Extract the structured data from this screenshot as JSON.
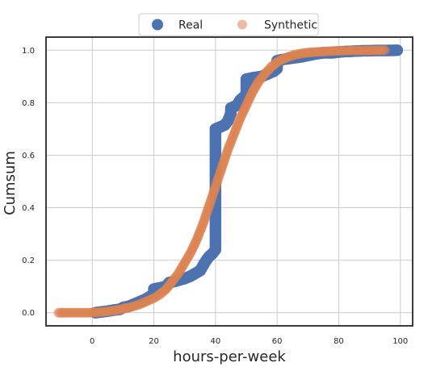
{
  "chart_data": {
    "type": "scatter",
    "xlabel": "hours-per-week",
    "ylabel": "Cumsum",
    "xlim": [
      -15,
      104
    ],
    "ylim": [
      -0.05,
      1.05
    ],
    "xticks": [
      0,
      20,
      40,
      60,
      80,
      100
    ],
    "yticks": [
      0.0,
      0.2,
      0.4,
      0.6,
      0.8,
      1.0
    ],
    "xtick_labels": [
      "0",
      "20",
      "40",
      "60",
      "80",
      "100"
    ],
    "ytick_labels": [
      "0.0",
      "0.2",
      "0.4",
      "0.6",
      "0.8",
      "1.0"
    ],
    "grid": true,
    "legend_position": "top-center",
    "series": [
      {
        "name": "Real",
        "color": "#4c72b0",
        "alpha": 1.0,
        "points": [
          [
            1,
            0.0
          ],
          [
            3,
            0.003
          ],
          [
            5,
            0.006
          ],
          [
            7,
            0.01
          ],
          [
            9,
            0.013
          ],
          [
            10,
            0.02
          ],
          [
            12,
            0.025
          ],
          [
            15,
            0.04
          ],
          [
            17,
            0.05
          ],
          [
            20,
            0.07
          ],
          [
            20,
            0.09
          ],
          [
            22,
            0.095
          ],
          [
            24,
            0.1
          ],
          [
            25,
            0.115
          ],
          [
            27,
            0.12
          ],
          [
            30,
            0.13
          ],
          [
            32,
            0.14
          ],
          [
            35,
            0.16
          ],
          [
            36,
            0.18
          ],
          [
            37,
            0.2
          ],
          [
            38,
            0.215
          ],
          [
            39,
            0.225
          ],
          [
            40,
            0.24
          ],
          [
            40,
            0.3
          ],
          [
            40,
            0.4
          ],
          [
            40,
            0.5
          ],
          [
            40,
            0.6
          ],
          [
            40,
            0.7
          ],
          [
            41,
            0.705
          ],
          [
            42,
            0.71
          ],
          [
            43,
            0.715
          ],
          [
            44,
            0.73
          ],
          [
            45,
            0.76
          ],
          [
            45,
            0.78
          ],
          [
            47,
            0.79
          ],
          [
            48,
            0.81
          ],
          [
            50,
            0.83
          ],
          [
            50,
            0.86
          ],
          [
            50,
            0.89
          ],
          [
            52,
            0.895
          ],
          [
            55,
            0.9
          ],
          [
            57,
            0.91
          ],
          [
            59,
            0.92
          ],
          [
            60,
            0.93
          ],
          [
            60,
            0.95
          ],
          [
            60,
            0.96
          ],
          [
            62,
            0.965
          ],
          [
            65,
            0.97
          ],
          [
            68,
            0.975
          ],
          [
            70,
            0.98
          ],
          [
            72,
            0.985
          ],
          [
            75,
            0.99
          ],
          [
            78,
            0.99
          ],
          [
            80,
            0.993
          ],
          [
            82,
            0.995
          ],
          [
            84,
            0.996
          ],
          [
            86,
            0.997
          ],
          [
            88,
            0.998
          ],
          [
            90,
            0.998
          ],
          [
            92,
            0.999
          ],
          [
            96,
            0.999
          ],
          [
            99,
            1.0
          ]
        ]
      },
      {
        "name": "Synthetic",
        "color": "#dd8452",
        "alpha": 0.55,
        "points": [
          [
            -11,
            0.0
          ],
          [
            -9,
            0.0
          ],
          [
            -7,
            0.0
          ],
          [
            -3,
            0.0
          ],
          [
            -1,
            0.0
          ],
          [
            0,
            0.001
          ],
          [
            2,
            0.002
          ],
          [
            5,
            0.005
          ],
          [
            8,
            0.01
          ],
          [
            10,
            0.015
          ],
          [
            12,
            0.02
          ],
          [
            15,
            0.03
          ],
          [
            17,
            0.04
          ],
          [
            20,
            0.055
          ],
          [
            22,
            0.07
          ],
          [
            24,
            0.09
          ],
          [
            26,
            0.12
          ],
          [
            28,
            0.15
          ],
          [
            30,
            0.19
          ],
          [
            32,
            0.23
          ],
          [
            34,
            0.28
          ],
          [
            36,
            0.34
          ],
          [
            38,
            0.41
          ],
          [
            40,
            0.48
          ],
          [
            42,
            0.55
          ],
          [
            44,
            0.62
          ],
          [
            46,
            0.68
          ],
          [
            48,
            0.74
          ],
          [
            50,
            0.79
          ],
          [
            52,
            0.84
          ],
          [
            54,
            0.88
          ],
          [
            56,
            0.91
          ],
          [
            58,
            0.935
          ],
          [
            60,
            0.955
          ],
          [
            62,
            0.967
          ],
          [
            64,
            0.976
          ],
          [
            66,
            0.983
          ],
          [
            68,
            0.988
          ],
          [
            70,
            0.991
          ],
          [
            72,
            0.993
          ],
          [
            75,
            0.995
          ],
          [
            78,
            0.997
          ],
          [
            80,
            0.998
          ],
          [
            84,
            0.999
          ],
          [
            87,
            0.999
          ],
          [
            90,
            0.999
          ],
          [
            95,
            1.0
          ]
        ]
      }
    ]
  }
}
